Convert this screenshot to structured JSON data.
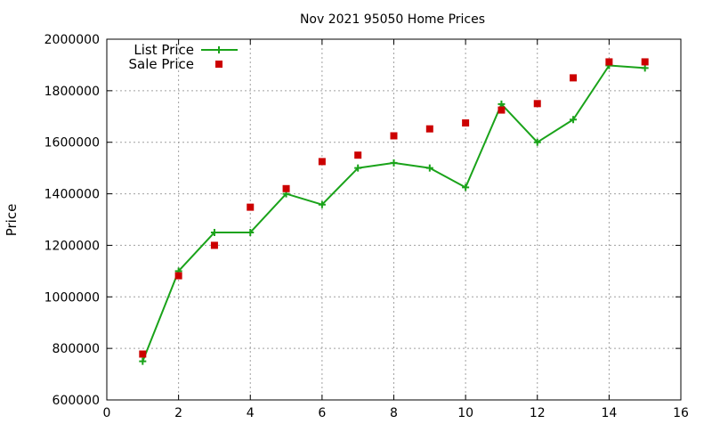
{
  "chart_data": {
    "type": "line",
    "title": "Nov 2021 95050 Home Prices",
    "xlabel": "",
    "ylabel": "Price",
    "xlim": [
      0,
      16
    ],
    "ylim": [
      600000,
      2000000
    ],
    "xticks": [
      "0",
      "2",
      "4",
      "6",
      "8",
      "10",
      "12",
      "14",
      "16"
    ],
    "yticks": [
      "600000",
      "800000",
      "1000000",
      "1200000",
      "1400000",
      "1600000",
      "1800000",
      "2000000"
    ],
    "grid": true,
    "legend_position": "top-left",
    "series": [
      {
        "name": "List Price",
        "style": "line-with-plus-markers",
        "color": "#1aa31a",
        "x": [
          1,
          2,
          3,
          4,
          5,
          6,
          7,
          8,
          9,
          10,
          11,
          12,
          13,
          14,
          15
        ],
        "values": [
          750000,
          1100000,
          1250000,
          1250000,
          1400000,
          1358000,
          1500000,
          1520000,
          1500000,
          1425000,
          1748000,
          1600000,
          1688000,
          1898000,
          1888000
        ]
      },
      {
        "name": "Sale Price",
        "style": "square-markers",
        "color": "#cc0000",
        "x": [
          1,
          2,
          3,
          4,
          5,
          6,
          7,
          8,
          9,
          10,
          11,
          12,
          13,
          14,
          15
        ],
        "values": [
          778000,
          1082000,
          1200000,
          1348000,
          1420000,
          1525000,
          1550000,
          1625000,
          1652000,
          1675000,
          1725000,
          1750000,
          1850000,
          1912000,
          1912000
        ]
      }
    ]
  }
}
